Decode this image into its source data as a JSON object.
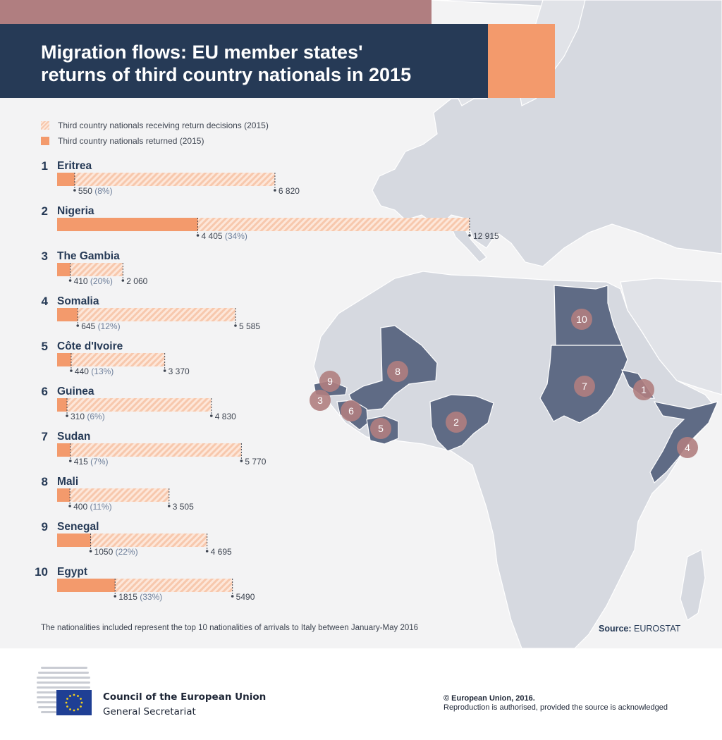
{
  "header": {
    "title_line1": "Migration flows: EU member states'",
    "title_line2": "returns of third country nationals in 2015"
  },
  "legend": {
    "decisions_label": "Third country nationals receiving return decisions (2015)",
    "returned_label": "Third country nationals returned (2015)"
  },
  "colors": {
    "navy": "#263a56",
    "accent": "#f39a6c",
    "hatch": "#f7c8ad",
    "map_land": "#d6d9e0",
    "map_highlight": "#5f6b85",
    "marker": "#b07e80"
  },
  "chart_data": {
    "type": "bar",
    "orientation": "horizontal",
    "series": [
      {
        "name": "Third country nationals receiving return decisions (2015)",
        "key": "decisions"
      },
      {
        "name": "Third country nationals returned (2015)",
        "key": "returned"
      }
    ],
    "rows": [
      {
        "rank": "1",
        "country": "Eritrea",
        "returned": 550,
        "returned_label": "550",
        "pct_label": "(8%)",
        "decisions": 6820,
        "decisions_label": "6 820"
      },
      {
        "rank": "2",
        "country": "Nigeria",
        "returned": 4405,
        "returned_label": "4 405",
        "pct_label": "(34%)",
        "decisions": 12915,
        "decisions_label": "12 915"
      },
      {
        "rank": "3",
        "country": "The Gambia",
        "returned": 410,
        "returned_label": "410",
        "pct_label": "(20%)",
        "decisions": 2060,
        "decisions_label": "2 060"
      },
      {
        "rank": "4",
        "country": "Somalia",
        "returned": 645,
        "returned_label": "645",
        "pct_label": "(12%)",
        "decisions": 5585,
        "decisions_label": "5 585"
      },
      {
        "rank": "5",
        "country": "Côte d'Ivoire",
        "returned": 440,
        "returned_label": "440",
        "pct_label": "(13%)",
        "decisions": 3370,
        "decisions_label": "3 370"
      },
      {
        "rank": "6",
        "country": "Guinea",
        "returned": 310,
        "returned_label": "310",
        "pct_label": "(6%)",
        "decisions": 4830,
        "decisions_label": "4 830"
      },
      {
        "rank": "7",
        "country": "Sudan",
        "returned": 415,
        "returned_label": "415",
        "pct_label": "(7%)",
        "decisions": 5770,
        "decisions_label": "5 770"
      },
      {
        "rank": "8",
        "country": "Mali",
        "returned": 400,
        "returned_label": "400",
        "pct_label": "(11%)",
        "decisions": 3505,
        "decisions_label": "3 505"
      },
      {
        "rank": "9",
        "country": "Senegal",
        "returned": 1050,
        "returned_label": "1050",
        "pct_label": "(22%)",
        "decisions": 4695,
        "decisions_label": "4 695"
      },
      {
        "rank": "10",
        "country": "Egypt",
        "returned": 1815,
        "returned_label": "1815",
        "pct_label": "(33%)",
        "decisions": 5490,
        "decisions_label": "5490"
      }
    ]
  },
  "map_markers": [
    "1",
    "2",
    "3",
    "4",
    "5",
    "6",
    "7",
    "8",
    "9",
    "10"
  ],
  "note": "The nationalities included represent the top 10 nationalities of arrivals to Italy between January-May 2016",
  "source": {
    "label": "Source:",
    "value": "EUROSTAT"
  },
  "footer": {
    "org_line1": "Council of the European Union",
    "org_line2": "General Secretariat",
    "copyright": "© European Union, 2016.",
    "reproduction": "Reproduction is authorised, provided the source is acknowledged"
  }
}
